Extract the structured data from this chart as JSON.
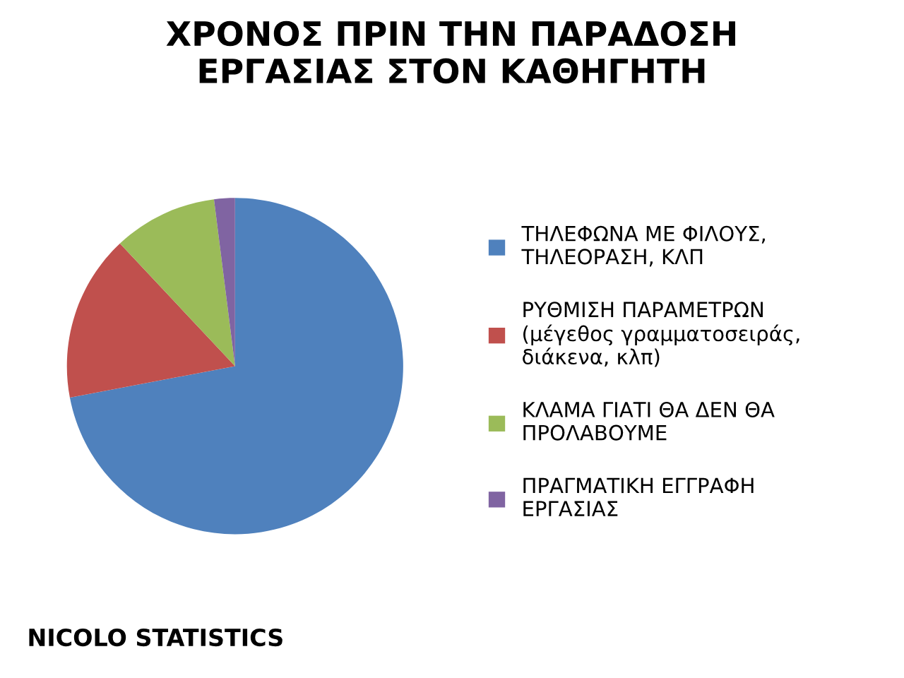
{
  "chart_data": {
    "type": "pie",
    "title": "ΧΡΟΝΟΣ ΠΡΙΝ ΤΗΝ ΠΑΡΑΔΟΣΗ\nΕΡΓΑΣΙΑΣ ΣΤΟΝ ΚΑΘΗΓΗΤΗ",
    "categories": [
      "ΤΗΛΕΦΩΝΑ ΜΕ ΦΙΛΟΥΣ,\nΤΗΛΕΟΡΑΣΗ, ΚΛΠ",
      "ΡΥΘΜΙΣΗ ΠΑΡΑΜΕΤΡΩΝ\n(μέγεθος γραμματοσειράς,\nδιάκενα, κλπ)",
      "ΚΛΑΜΑ ΓΙΑΤΙ ΘΑ ΔΕΝ ΘΑ\nΠΡΟΛΑΒΟΥΜΕ",
      "ΠΡΑΓΜΑΤΙΚΗ ΕΓΓΡΑΦΗ\nΕΡΓΑΣΙΑΣ"
    ],
    "values": [
      72,
      16,
      10,
      2
    ],
    "colors": [
      "#4f81bd",
      "#c0504d",
      "#9bbb59",
      "#8064a2"
    ],
    "legend": "right",
    "annotations": [
      "NICOLO STATISTICS"
    ]
  }
}
